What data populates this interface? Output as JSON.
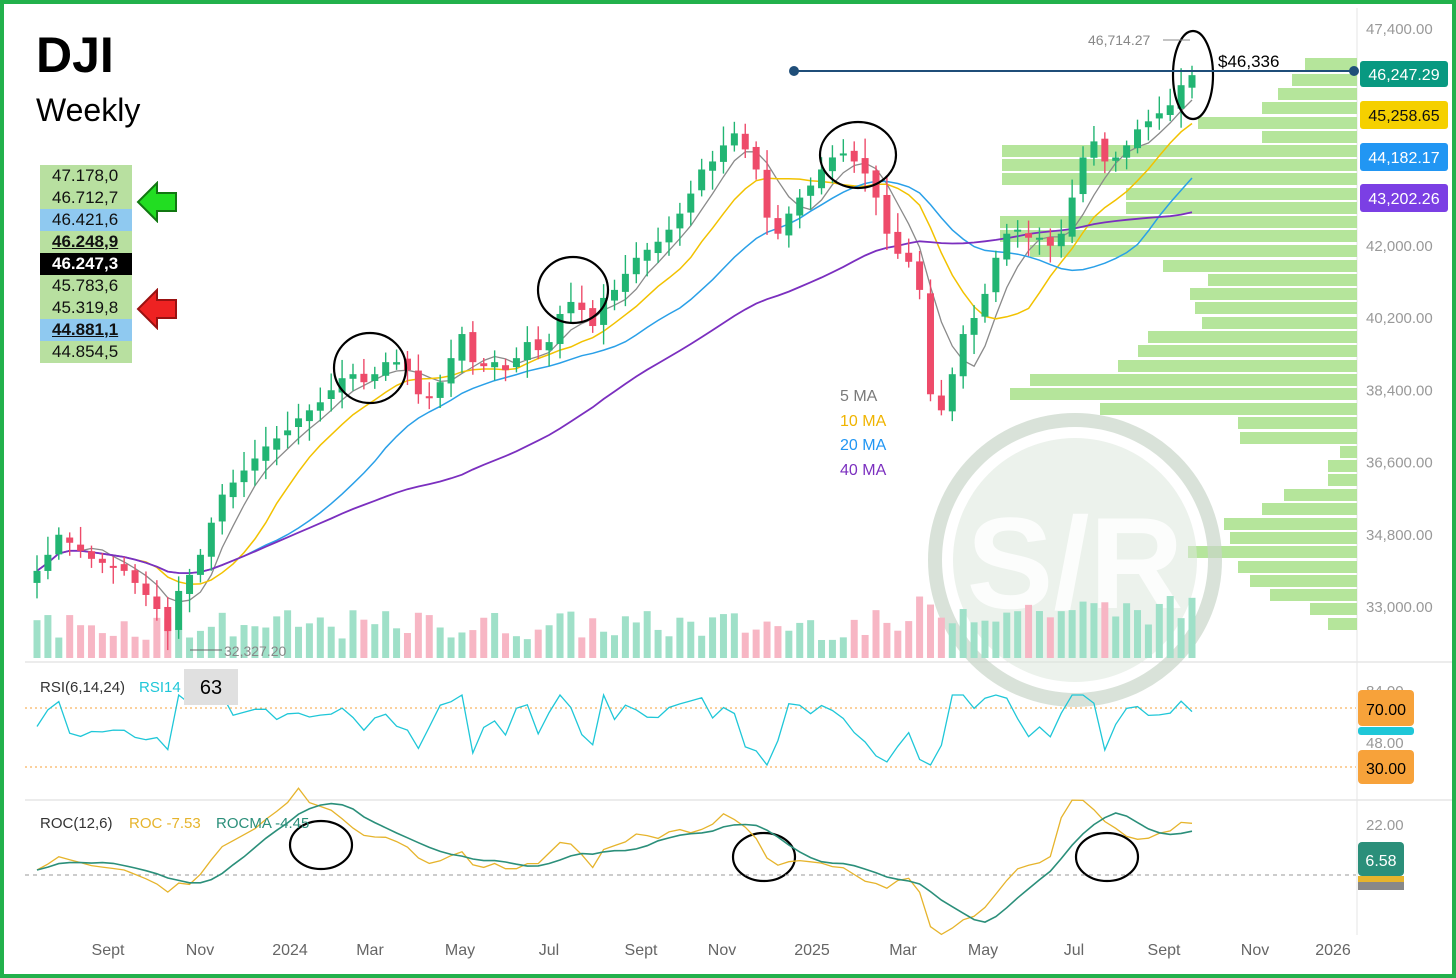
{
  "header": {
    "title": "DJI",
    "subtitle": "Weekly"
  },
  "levels": [
    {
      "value": "47.178,0",
      "style": "green"
    },
    {
      "value": "46.712,7",
      "style": "green"
    },
    {
      "value": "46.421,6",
      "style": "blue"
    },
    {
      "value": "46.248,9",
      "style": "green-bold"
    },
    {
      "value": "46.247,3",
      "style": "black"
    },
    {
      "value": "45.783,6",
      "style": "green"
    },
    {
      "value": "45.319,8",
      "style": "green"
    },
    {
      "value": "44.881,1",
      "style": "blue-bold"
    },
    {
      "value": "44.854,5",
      "style": "green"
    }
  ],
  "chart_data": {
    "type": "candlestick",
    "price_axis": {
      "ticks": [
        "47,400.00",
        "42,000.00",
        "40,200.00",
        "38,400.00",
        "36,600.00",
        "34,800.00",
        "33,000.00"
      ],
      "ylim": [
        32000,
        47800
      ]
    },
    "time_axis": {
      "labels": [
        "Sept",
        "Nov",
        "2024",
        "Mar",
        "May",
        "Jul",
        "Sept",
        "Nov",
        "2025",
        "Mar",
        "May",
        "Jul",
        "Sept",
        "Nov",
        "2026"
      ]
    },
    "price_tags": [
      {
        "label": "46,247.29",
        "color": "#089981"
      },
      {
        "label": "45,258.65",
        "color": "#f5d000"
      },
      {
        "label": "44,182.17",
        "color": "#2196f3"
      },
      {
        "label": "43,202.26",
        "color": "#7b3fe4"
      }
    ],
    "annotations": {
      "high": "46,714.27",
      "low": "32,327.20",
      "target": "$46,336"
    },
    "ma_legend": [
      {
        "name": "5 MA",
        "color": "#7a7a7a"
      },
      {
        "name": "10 MA",
        "color": "#f0b400"
      },
      {
        "name": "20 MA",
        "color": "#2196f3"
      },
      {
        "name": "40 MA",
        "color": "#7b2fbf"
      }
    ],
    "closes": [
      33900,
      34300,
      34800,
      34600,
      34400,
      34200,
      34100,
      34000,
      33900,
      33600,
      33300,
      32950,
      32400,
      33400,
      33800,
      34300,
      35100,
      35800,
      36100,
      36400,
      36700,
      37000,
      37200,
      37400,
      37700,
      37900,
      38100,
      38400,
      38700,
      38800,
      38600,
      38800,
      39100,
      39100,
      38900,
      38300,
      38200,
      38600,
      39200,
      39800,
      39100,
      39000,
      39100,
      38900,
      39200,
      39600,
      39400,
      39600,
      40300,
      40600,
      40400,
      40000,
      40700,
      40900,
      41300,
      41700,
      41900,
      42100,
      42400,
      42800,
      43300,
      43900,
      44100,
      44500,
      44800,
      44400,
      43900,
      42700,
      42300,
      42800,
      43200,
      43500,
      43900,
      44200,
      44300,
      44100,
      43800,
      43200,
      42300,
      41800,
      41600,
      40900,
      38300,
      37900,
      38800,
      39800,
      40200,
      40800,
      41700,
      42300,
      42400,
      42200,
      42200,
      42000,
      42300,
      43200,
      44200,
      44600,
      44100,
      44200,
      44500,
      44900,
      45100,
      45300,
      45500,
      46000,
      46250
    ],
    "volume_max_label": "",
    "rsi": {
      "label": "RSI(6,14,24)",
      "series_label": "RSI14",
      "value": "63",
      "ticks": [
        "84.00",
        "48.00"
      ],
      "tags": [
        "70.00",
        "30.00"
      ]
    },
    "roc": {
      "label": "ROC(12,6)",
      "roc_label": "ROC -7.53",
      "rocma_label": "ROCMA -4.45",
      "ticks": [
        "22.00"
      ],
      "tag": "6.58"
    }
  },
  "watermark": {
    "text": "S/R"
  }
}
